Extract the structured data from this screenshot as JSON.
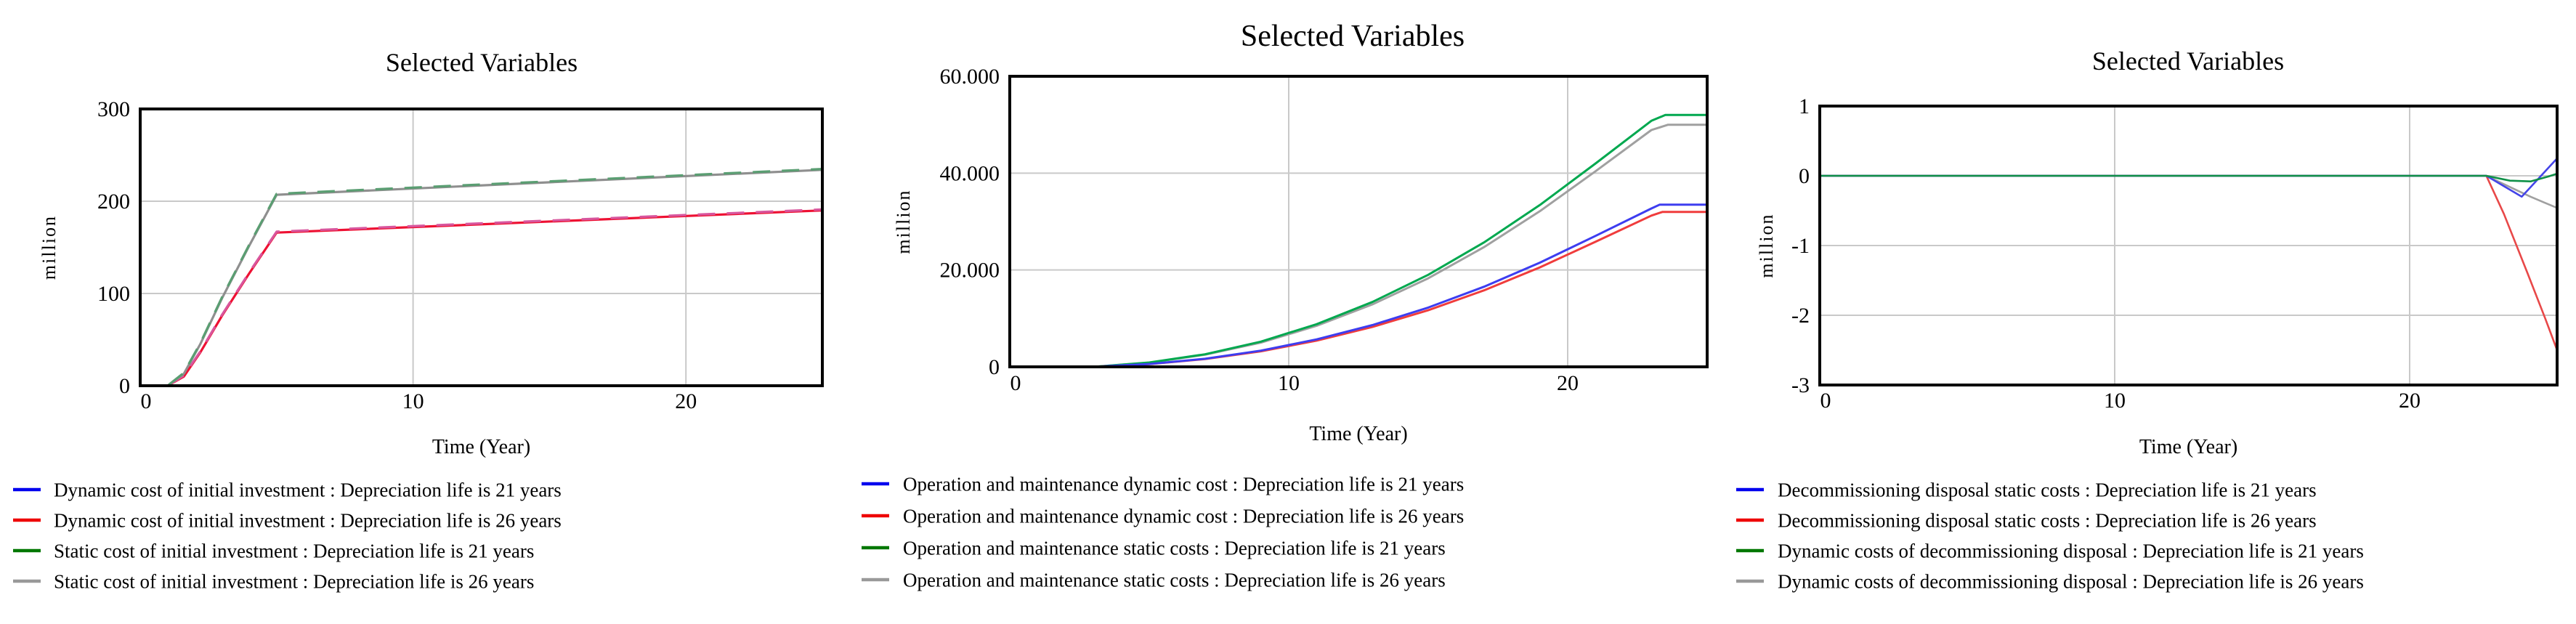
{
  "chart_data": [
    {
      "type": "line",
      "title": "Selected Variables",
      "xlabel": "Time (Year)",
      "ylabel": "million",
      "xlim": [
        0,
        25
      ],
      "ylim": [
        0,
        300
      ],
      "x_ticks": [
        {
          "label": "0",
          "v": 0
        },
        {
          "label": "10",
          "v": 10
        },
        {
          "label": "20",
          "v": 20
        }
      ],
      "y_ticks": [
        {
          "label": "300",
          "v": 300
        },
        {
          "label": "200",
          "v": 200
        },
        {
          "label": "100",
          "v": 100
        },
        {
          "label": "0",
          "v": 0
        }
      ],
      "grid_x": [
        10,
        20
      ],
      "grid_y": [
        100,
        200
      ],
      "grid": true,
      "legend_position": "below",
      "stroke_width": 3.2,
      "series": [
        {
          "name": "Dynamic cost of initial investment : Depreciation life is 21 years",
          "color": "#2a2ae0",
          "swatch": "#0000ee",
          "z": 2,
          "mode": "overlap-dash",
          "dash_color": "#d8569d",
          "dash": "24 16",
          "points": [
            [
              0,
              0
            ],
            [
              1,
              0
            ],
            [
              1.6,
              11
            ],
            [
              2.2,
              37
            ],
            [
              3,
              77
            ],
            [
              4,
              123
            ],
            [
              5,
              167
            ],
            [
              25,
              191
            ]
          ]
        },
        {
          "name": "Dynamic cost of initial investment : Depreciation life is 26 years",
          "color": "#ee1133",
          "swatch": "#ee0000",
          "z": 1,
          "points": [
            [
              0,
              0
            ],
            [
              1,
              0
            ],
            [
              1.6,
              10
            ],
            [
              2.2,
              36
            ],
            [
              3,
              76
            ],
            [
              4,
              122
            ],
            [
              5,
              166
            ],
            [
              25,
              190
            ]
          ]
        },
        {
          "name": "Static cost of initial investment : Depreciation life is 21 years",
          "color": "#0c8a40",
          "swatch": "#007700",
          "z": 4,
          "mode": "overlap-dash",
          "dash_color": "#5a9e72",
          "dash": "24 16",
          "points": [
            [
              0,
              0
            ],
            [
              1,
              0
            ],
            [
              1.6,
              14
            ],
            [
              2.2,
              46
            ],
            [
              3,
              96
            ],
            [
              4,
              153
            ],
            [
              5,
              208
            ],
            [
              25,
              235
            ]
          ]
        },
        {
          "name": "Static cost of initial investment : Depreciation life is 26 years",
          "color": "#8f8f8f",
          "swatch": "#999999",
          "z": 3,
          "points": [
            [
              0,
              0
            ],
            [
              1,
              0
            ],
            [
              1.6,
              13
            ],
            [
              2.2,
              45
            ],
            [
              3,
              95
            ],
            [
              4,
              152
            ],
            [
              5,
              207
            ],
            [
              25,
              234
            ]
          ]
        }
      ]
    },
    {
      "type": "line",
      "title": "Selected Variables",
      "xlabel": "Time (Year)",
      "ylabel": "million",
      "xlim": [
        0,
        25
      ],
      "ylim": [
        0,
        60000
      ],
      "x_ticks": [
        {
          "label": "0",
          "v": 0
        },
        {
          "label": "10",
          "v": 10
        },
        {
          "label": "20",
          "v": 20
        }
      ],
      "y_ticks": [
        {
          "label": "60.000",
          "v": 60000
        },
        {
          "label": "40.000",
          "v": 40000
        },
        {
          "label": "20.000",
          "v": 20000
        },
        {
          "label": "0",
          "v": 0
        }
      ],
      "grid_x": [
        10,
        20
      ],
      "grid_y": [
        20000,
        40000
      ],
      "grid": true,
      "legend_position": "below",
      "stroke_width": 3,
      "series": [
        {
          "name": "Operation and maintenance dynamic cost : Depreciation life is 21 years",
          "color": "#3d3df0",
          "swatch": "#0000ee",
          "z": 4,
          "points": [
            [
              0,
              0
            ],
            [
              3,
              0
            ],
            [
              5,
              580
            ],
            [
              7,
              1670
            ],
            [
              9,
              3350
            ],
            [
              11,
              5670
            ],
            [
              13,
              8630
            ],
            [
              15,
              12240
            ],
            [
              17,
              16550
            ],
            [
              19,
              21510
            ],
            [
              21,
              27050
            ],
            [
              23,
              32700
            ],
            [
              23.3,
              33500
            ],
            [
              25,
              33500
            ]
          ]
        },
        {
          "name": "Operation and maintenance dynamic cost : Depreciation life is 26 years",
          "color": "#f03c3c",
          "swatch": "#ee0000",
          "z": 3,
          "points": [
            [
              0,
              0
            ],
            [
              3,
              0
            ],
            [
              5,
              550
            ],
            [
              7,
              1600
            ],
            [
              9,
              3200
            ],
            [
              11,
              5410
            ],
            [
              13,
              8240
            ],
            [
              15,
              11690
            ],
            [
              17,
              15800
            ],
            [
              19,
              20540
            ],
            [
              21,
              25830
            ],
            [
              23,
              31230
            ],
            [
              23.4,
              32000
            ],
            [
              25,
              32000
            ]
          ]
        },
        {
          "name": "Operation and maintenance static costs : Depreciation life is 21 years",
          "color": "#00a84f",
          "swatch": "#007700",
          "z": 2,
          "points": [
            [
              0,
              0
            ],
            [
              3,
              0
            ],
            [
              5,
              900
            ],
            [
              7,
              2600
            ],
            [
              9,
              5200
            ],
            [
              11,
              8800
            ],
            [
              13,
              13400
            ],
            [
              15,
              19000
            ],
            [
              17,
              25700
            ],
            [
              19,
              33400
            ],
            [
              21,
              42000
            ],
            [
              23,
              50800
            ],
            [
              23.5,
              52000
            ],
            [
              25,
              52000
            ]
          ]
        },
        {
          "name": "Operation and maintenance static costs : Depreciation life is 26 years",
          "color": "#a0a0a0",
          "swatch": "#999999",
          "z": 1,
          "points": [
            [
              0,
              0
            ],
            [
              3,
              0
            ],
            [
              5,
              860
            ],
            [
              7,
              2500
            ],
            [
              9,
              5000
            ],
            [
              11,
              8470
            ],
            [
              13,
              12900
            ],
            [
              15,
              18280
            ],
            [
              17,
              24720
            ],
            [
              19,
              32130
            ],
            [
              21,
              40400
            ],
            [
              23,
              48900
            ],
            [
              23.6,
              50000
            ],
            [
              25,
              50000
            ]
          ]
        }
      ]
    },
    {
      "type": "line",
      "title": "Selected Variables",
      "xlabel": "Time (Year)",
      "ylabel": "million",
      "xlim": [
        0,
        25
      ],
      "ylim": [
        -3,
        1
      ],
      "x_ticks": [
        {
          "label": "0",
          "v": 0
        },
        {
          "label": "10",
          "v": 10
        },
        {
          "label": "20",
          "v": 20
        }
      ],
      "y_ticks": [
        {
          "label": "1",
          "v": 1
        },
        {
          "label": "0",
          "v": 0
        },
        {
          "label": "-1",
          "v": -1
        },
        {
          "label": "-2",
          "v": -2
        },
        {
          "label": "-3",
          "v": -3
        }
      ],
      "grid_x": [
        10,
        20
      ],
      "grid_y": [
        0,
        -1,
        -2
      ],
      "grid": true,
      "legend_position": "below",
      "stroke_width": 2.6,
      "series": [
        {
          "name": "Decommissioning disposal static costs : Depreciation life is 21 years",
          "color": "#4444e8",
          "swatch": "#0000ee",
          "z": 3,
          "points": [
            [
              0,
              0
            ],
            [
              22.6,
              0
            ],
            [
              23.8,
              -0.3
            ],
            [
              25,
              0.25
            ]
          ]
        },
        {
          "name": "Decommissioning disposal static costs : Depreciation life is 26 years",
          "color": "#e84848",
          "swatch": "#ee0000",
          "z": 1,
          "points": [
            [
              0,
              0
            ],
            [
              22.6,
              0
            ],
            [
              23.2,
              -0.55
            ],
            [
              24,
              -1.4
            ],
            [
              24.6,
              -2.05
            ],
            [
              25,
              -2.5
            ]
          ]
        },
        {
          "name": "Dynamic costs of decommissioning disposal : Depreciation life is 21 years",
          "color": "#0f9048",
          "swatch": "#007700",
          "z": 4,
          "points": [
            [
              0,
              0
            ],
            [
              22.6,
              0
            ],
            [
              23.4,
              -0.07
            ],
            [
              24.1,
              -0.08
            ],
            [
              24.7,
              -0.01
            ],
            [
              25,
              0.03
            ]
          ]
        },
        {
          "name": "Dynamic costs of decommissioning disposal : Depreciation life is 26 years",
          "color": "#a0a0a0",
          "swatch": "#999999",
          "z": 2,
          "points": [
            [
              0,
              0
            ],
            [
              22.6,
              0
            ],
            [
              23.4,
              -0.16
            ],
            [
              24.1,
              -0.3
            ],
            [
              24.6,
              -0.39
            ],
            [
              25,
              -0.46
            ]
          ]
        }
      ]
    }
  ],
  "colors": {
    "grid": "#c9c9c9",
    "frame": "#000000",
    "background": "#ffffff",
    "text": "#000000"
  }
}
